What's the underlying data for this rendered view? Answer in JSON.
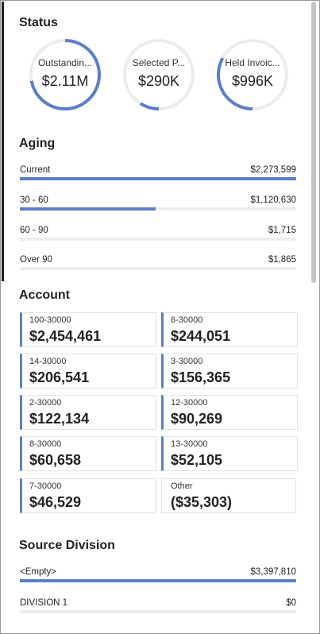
{
  "status": {
    "title": "Status",
    "gauges": [
      {
        "label": "Outstandin...",
        "value": "$2.11M",
        "fill": 0.72
      },
      {
        "label": "Selected P...",
        "value": "$290K",
        "fill": 0.09
      },
      {
        "label": "Held Invoic...",
        "value": "$996K",
        "fill": 0.33
      }
    ],
    "accent_color": "#5b7fc6"
  },
  "aging": {
    "title": "Aging",
    "rows": [
      {
        "label": "Current",
        "amount": "$2,273,599",
        "fill": 1.0
      },
      {
        "label": "30 - 60",
        "amount": "$1,120,630",
        "fill": 0.49
      },
      {
        "label": "60 - 90",
        "amount": "$1,715",
        "fill": 0.0
      },
      {
        "label": "Over 90",
        "amount": "$1,865",
        "fill": 0.0
      }
    ]
  },
  "account": {
    "title": "Account",
    "cards": [
      {
        "code": "100-30000",
        "value": "$2,454,461",
        "accent": true
      },
      {
        "code": "6-30000",
        "value": "$244,051",
        "accent": true
      },
      {
        "code": "14-30000",
        "value": "$206,541",
        "accent": true
      },
      {
        "code": "3-30000",
        "value": "$156,365",
        "accent": true
      },
      {
        "code": "2-30000",
        "value": "$122,134",
        "accent": true
      },
      {
        "code": "12-30000",
        "value": "$90,269",
        "accent": true
      },
      {
        "code": "8-30000",
        "value": "$60,658",
        "accent": true
      },
      {
        "code": "13-30000",
        "value": "$52,105",
        "accent": true
      },
      {
        "code": "7-30000",
        "value": "$46,529",
        "accent": true
      },
      {
        "code": "Other",
        "value": "($35,303)",
        "accent": false
      }
    ]
  },
  "source_division": {
    "title": "Source Division",
    "rows": [
      {
        "label": "<Empty>",
        "amount": "$3,397,810",
        "fill": 1.0
      },
      {
        "label": "DIVISION 1",
        "amount": "$0",
        "fill": 0.0
      }
    ]
  }
}
